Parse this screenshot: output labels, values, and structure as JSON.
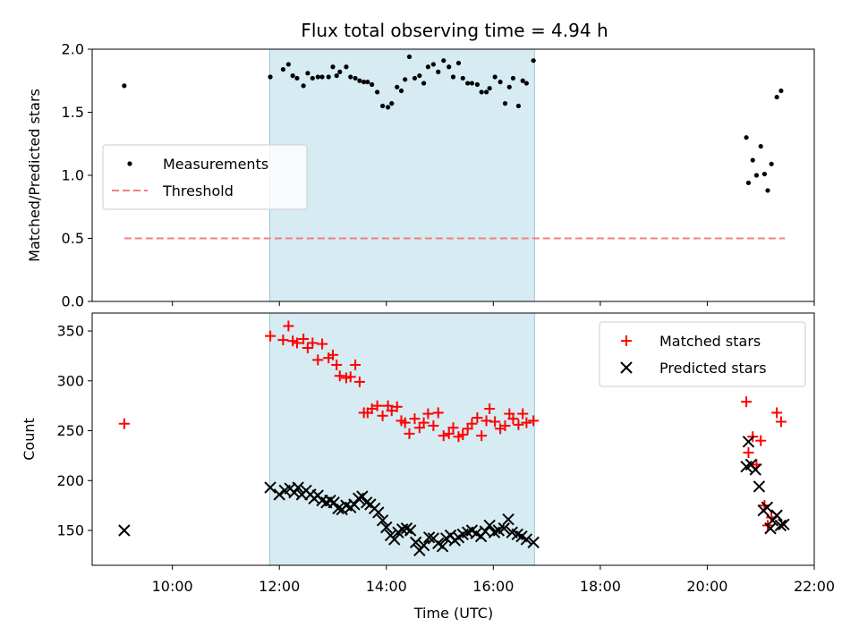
{
  "chart_data": {
    "title": "Flux total observing time = 4.94 h",
    "xlabel": "Time (UTC)",
    "x_unit": "hours UTC",
    "xlim": [
      8.5,
      22.0
    ],
    "xticks": [
      {
        "value": 10,
        "label": "10:00"
      },
      {
        "value": 12,
        "label": "12:00"
      },
      {
        "value": 14,
        "label": "14:00"
      },
      {
        "value": 16,
        "label": "16:00"
      },
      {
        "value": 18,
        "label": "18:00"
      },
      {
        "value": 20,
        "label": "20:00"
      },
      {
        "value": 22,
        "label": "22:00"
      }
    ],
    "shaded_span": {
      "start": 11.82,
      "end": 16.77,
      "color": "#add8e6"
    },
    "panels": [
      {
        "type": "scatter",
        "ylabel": "Matched/Predicted stars",
        "ylim": [
          0.0,
          2.0
        ],
        "yticks": [
          {
            "value": 0.0,
            "label": "0.0"
          },
          {
            "value": 0.5,
            "label": "0.5"
          },
          {
            "value": 1.0,
            "label": "1.0"
          },
          {
            "value": 1.5,
            "label": "1.5"
          },
          {
            "value": 2.0,
            "label": "2.0"
          }
        ],
        "legend_position": "center-left",
        "series": [
          {
            "name": "Measurements",
            "kind": "scatter",
            "marker": "dot",
            "color": "#000000",
            "x": [
              9.1,
              11.83,
              12.07,
              12.17,
              12.25,
              12.33,
              12.45,
              12.53,
              12.62,
              12.72,
              12.8,
              12.92,
              13.0,
              13.07,
              13.13,
              13.25,
              13.33,
              13.42,
              13.5,
              13.58,
              13.65,
              13.73,
              13.83,
              13.93,
              14.03,
              14.1,
              14.2,
              14.28,
              14.35,
              14.43,
              14.53,
              14.62,
              14.7,
              14.78,
              14.88,
              14.97,
              15.07,
              15.17,
              15.25,
              15.35,
              15.43,
              15.52,
              15.6,
              15.7,
              15.78,
              15.87,
              15.93,
              16.03,
              16.13,
              16.22,
              16.3,
              16.37,
              16.47,
              16.55,
              16.62,
              16.75,
              20.73,
              20.77,
              20.85,
              20.92,
              21.0,
              21.07,
              21.13,
              21.2,
              21.3,
              21.38
            ],
            "y": [
              1.71,
              1.78,
              1.84,
              1.88,
              1.79,
              1.77,
              1.71,
              1.81,
              1.77,
              1.78,
              1.78,
              1.78,
              1.86,
              1.79,
              1.82,
              1.86,
              1.78,
              1.77,
              1.75,
              1.74,
              1.74,
              1.72,
              1.66,
              1.55,
              1.54,
              1.57,
              1.7,
              1.67,
              1.76,
              1.94,
              1.77,
              1.79,
              1.73,
              1.86,
              1.88,
              1.82,
              1.91,
              1.86,
              1.78,
              1.89,
              1.77,
              1.73,
              1.73,
              1.72,
              1.66,
              1.66,
              1.69,
              1.78,
              1.74,
              1.57,
              1.7,
              1.77,
              1.55,
              1.75,
              1.73,
              1.91,
              1.3,
              0.94,
              1.12,
              1.0,
              1.23,
              1.01,
              0.88,
              1.09,
              1.62,
              1.67
            ]
          },
          {
            "name": "Threshold",
            "kind": "line",
            "style": "dashed",
            "color": "#f08080",
            "x": [
              9.1,
              21.45
            ],
            "y": [
              0.5,
              0.5
            ]
          }
        ]
      },
      {
        "type": "scatter",
        "ylabel": "Count",
        "ylim": [
          115,
          368
        ],
        "yticks": [
          {
            "value": 150,
            "label": "150"
          },
          {
            "value": 200,
            "label": "200"
          },
          {
            "value": 250,
            "label": "250"
          },
          {
            "value": 300,
            "label": "300"
          },
          {
            "value": 350,
            "label": "350"
          }
        ],
        "legend_position": "top-right",
        "series": [
          {
            "name": "Matched stars",
            "kind": "scatter",
            "marker": "plus",
            "color": "#ff0000",
            "x": [
              9.1,
              11.83,
              12.07,
              12.17,
              12.25,
              12.33,
              12.45,
              12.53,
              12.62,
              12.72,
              12.8,
              12.92,
              13.0,
              13.07,
              13.13,
              13.25,
              13.33,
              13.42,
              13.5,
              13.58,
              13.65,
              13.73,
              13.83,
              13.93,
              14.03,
              14.1,
              14.2,
              14.28,
              14.35,
              14.43,
              14.53,
              14.62,
              14.7,
              14.78,
              14.88,
              14.97,
              15.07,
              15.17,
              15.25,
              15.35,
              15.43,
              15.52,
              15.6,
              15.7,
              15.78,
              15.87,
              15.93,
              16.03,
              16.13,
              16.22,
              16.3,
              16.37,
              16.47,
              16.55,
              16.62,
              16.75,
              20.73,
              20.77,
              20.85,
              20.92,
              21.0,
              21.07,
              21.13,
              21.2,
              21.3,
              21.38
            ],
            "y": [
              257,
              345,
              341,
              355,
              340,
              338,
              342,
              333,
              338,
              321,
              337,
              323,
              326,
              316,
              305,
              303,
              304,
              316,
              299,
              268,
              268,
              272,
              275,
              265,
              275,
              270,
              274,
              260,
              258,
              247,
              262,
              253,
              258,
              267,
              255,
              268,
              245,
              247,
              253,
              244,
              246,
              252,
              257,
              263,
              245,
              260,
              272,
              259,
              252,
              255,
              267,
              262,
              256,
              267,
              258,
              260,
              279,
              228,
              244,
              216,
              240,
              175,
              155,
              163,
              268,
              259
            ]
          },
          {
            "name": "Predicted stars",
            "kind": "scatter",
            "marker": "x",
            "color": "#000000",
            "x": [
              9.1,
              11.83,
              12.0,
              12.1,
              12.2,
              12.28,
              12.35,
              12.42,
              12.5,
              12.58,
              12.65,
              12.72,
              12.8,
              12.88,
              12.95,
              13.02,
              13.1,
              13.17,
              13.25,
              13.33,
              13.4,
              13.48,
              13.55,
              13.63,
              13.7,
              13.78,
              13.85,
              13.93,
              14.0,
              14.08,
              14.15,
              14.22,
              14.3,
              14.38,
              14.45,
              14.55,
              14.62,
              14.7,
              14.8,
              14.88,
              14.97,
              15.05,
              15.12,
              15.2,
              15.28,
              15.35,
              15.43,
              15.52,
              15.6,
              15.68,
              15.77,
              15.85,
              15.93,
              16.02,
              16.1,
              16.2,
              16.28,
              16.35,
              16.45,
              16.53,
              16.62,
              16.75,
              20.73,
              20.77,
              20.82,
              20.9,
              20.97,
              21.05,
              21.12,
              21.18,
              21.22,
              21.3,
              21.37,
              21.43
            ],
            "y": [
              150,
              193,
              186,
              190,
              192,
              188,
              193,
              186,
              190,
              186,
              182,
              185,
              180,
              178,
              180,
              178,
              172,
              171,
              175,
              173,
              176,
              182,
              184,
              178,
              176,
              172,
              168,
              160,
              153,
              145,
              141,
              148,
              151,
              152,
              150,
              138,
              130,
              135,
              143,
              142,
              137,
              134,
              142,
              145,
              140,
              143,
              146,
              148,
              150,
              147,
              144,
              149,
              155,
              148,
              150,
              152,
              161,
              148,
              146,
              144,
              141,
              138,
              214,
              239,
              216,
              211,
              194,
              170,
              173,
              152,
              160,
              165,
              155,
              156
            ]
          }
        ]
      }
    ]
  }
}
